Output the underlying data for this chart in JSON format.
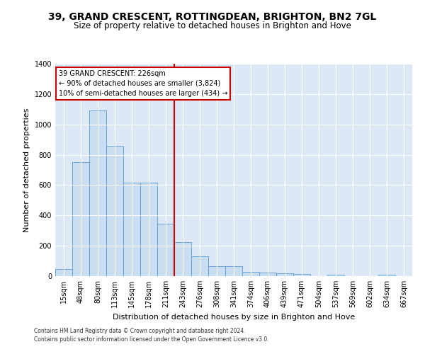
{
  "title": "39, GRAND CRESCENT, ROTTINGDEAN, BRIGHTON, BN2 7GL",
  "subtitle": "Size of property relative to detached houses in Brighton and Hove",
  "xlabel": "Distribution of detached houses by size in Brighton and Hove",
  "ylabel": "Number of detached properties",
  "footnote1": "Contains HM Land Registry data © Crown copyright and database right 2024.",
  "footnote2": "Contains public sector information licensed under the Open Government Licence v3.0.",
  "categories": [
    "15sqm",
    "48sqm",
    "80sqm",
    "113sqm",
    "145sqm",
    "178sqm",
    "211sqm",
    "243sqm",
    "276sqm",
    "308sqm",
    "341sqm",
    "374sqm",
    "406sqm",
    "439sqm",
    "471sqm",
    "504sqm",
    "537sqm",
    "569sqm",
    "602sqm",
    "634sqm",
    "667sqm"
  ],
  "values": [
    48,
    750,
    1090,
    860,
    615,
    615,
    345,
    225,
    130,
    65,
    65,
    28,
    25,
    20,
    12,
    0,
    8,
    0,
    0,
    10,
    0
  ],
  "bar_color": "#c8ddf0",
  "bar_edge_color": "#5b9bd5",
  "vline_color": "#cc0000",
  "annotation_line1": "39 GRAND CRESCENT: 226sqm",
  "annotation_line2": "← 90% of detached houses are smaller (3,824)",
  "annotation_line3": "10% of semi-detached houses are larger (434) →",
  "annotation_box_color": "#ffffff",
  "annotation_box_edge": "#cc0000",
  "ylim": [
    0,
    1400
  ],
  "yticks": [
    0,
    200,
    400,
    600,
    800,
    1000,
    1200,
    1400
  ],
  "bg_color": "#dce8f5",
  "title_fontsize": 10,
  "subtitle_fontsize": 8.5,
  "tick_fontsize": 7,
  "label_fontsize": 8,
  "footnote_fontsize": 5.5,
  "vline_x_index": 7.5
}
